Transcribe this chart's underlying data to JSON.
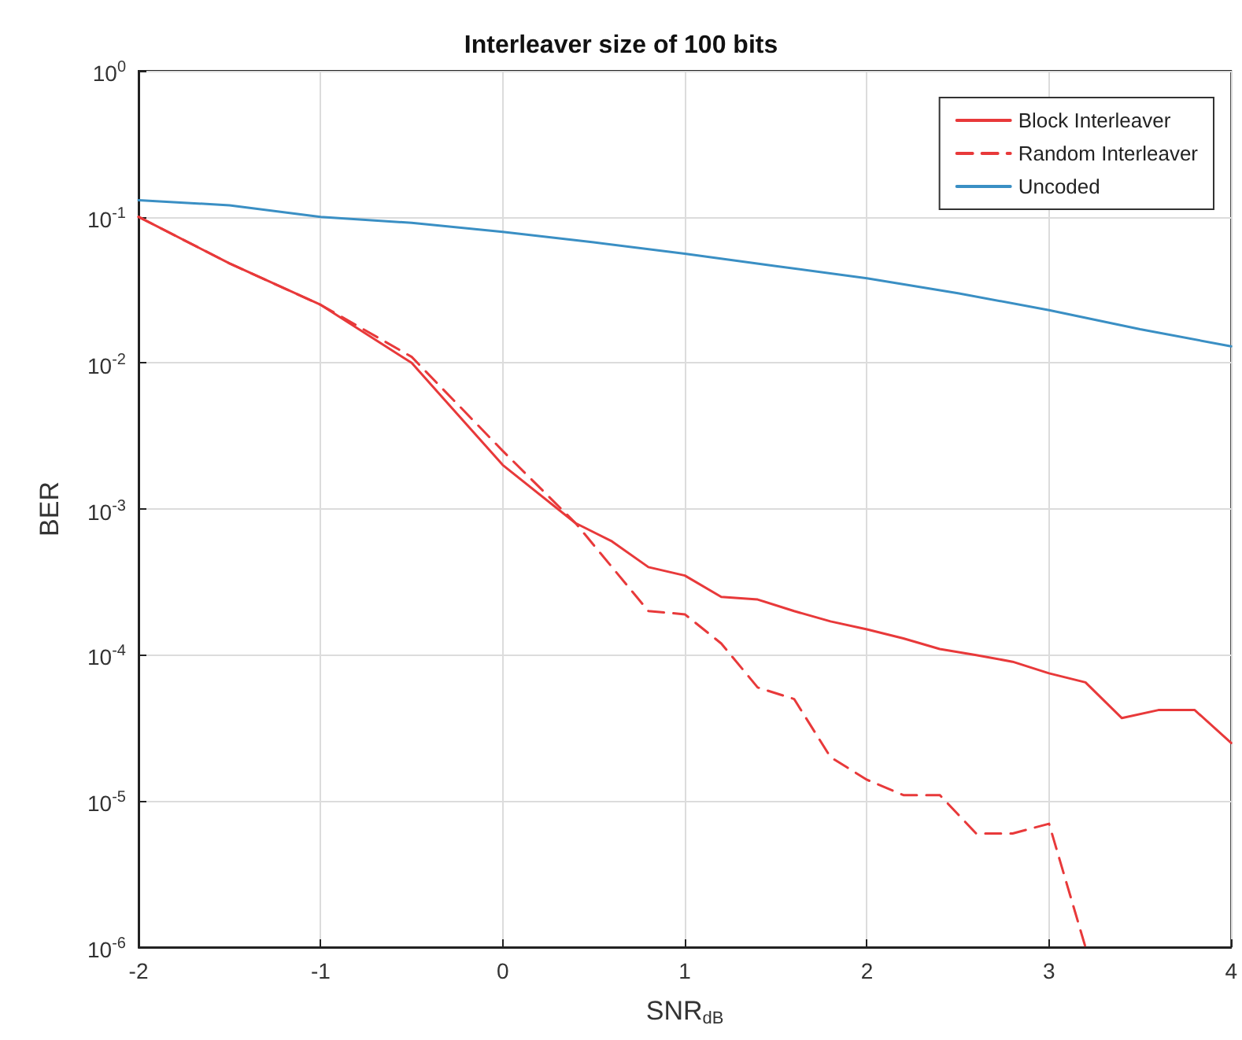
{
  "chart_data": {
    "type": "line",
    "title": "Interleaver size of 100 bits",
    "xlabel": "SNR$_{dB}$",
    "ylabel": "BER",
    "log": "y",
    "grid": true,
    "legend": "top right",
    "marker": "none",
    "xlim": [
      -2,
      4
    ],
    "xticks": [
      -2,
      -1,
      0,
      1,
      2,
      3,
      4
    ],
    "ylim": [
      1e-06,
      1
    ],
    "yticks": [
      {
        "value": 1e-06,
        "label": "10$^{-6}$"
      },
      {
        "value": 1e-05,
        "label": "10$^{-5}$"
      },
      {
        "value": 0.0001,
        "label": "10$^{-4}$"
      },
      {
        "value": 0.001,
        "label": "10$^{-3}$"
      },
      {
        "value": 0.01,
        "label": "10$^{-2}$"
      },
      {
        "value": 0.1,
        "label": "10$^{-1}$"
      },
      {
        "value": 1,
        "label": "10$^{0}$"
      }
    ],
    "x": [
      -2,
      -1.5,
      -1,
      -0.5,
      0,
      0.4,
      0.6,
      0.8,
      1,
      1.2,
      1.4,
      1.6,
      1.8,
      2,
      2.2,
      2.4,
      2.6,
      2.8,
      3,
      3.2,
      3.4,
      3.6,
      3.8,
      4
    ],
    "series": [
      {
        "name": "Block Interleaver",
        "color": "#e8393a",
        "line_style": "solid",
        "values": [
          0.1,
          0.048,
          0.025,
          0.01,
          0.002,
          0.0008,
          0.0006,
          0.0004,
          0.00035,
          0.00025,
          0.00024,
          0.0002,
          0.00017,
          0.00015,
          0.00013,
          0.00011,
          0.0001,
          9e-05,
          7.5e-05,
          6.5e-05,
          3.7e-05,
          4.2e-05,
          4.2e-05,
          2.5e-05
        ]
      },
      {
        "name": "Random Interleaver",
        "color": "#e8393a",
        "line_style": "dashed",
        "values": [
          0.1,
          0.048,
          0.025,
          0.011,
          0.0025,
          0.0008,
          0.0004,
          0.0002,
          0.00019,
          0.00012,
          6e-05,
          5e-05,
          2e-05,
          1.4e-05,
          1.1e-05,
          1.1e-05,
          6e-06,
          6e-06,
          7e-06,
          1e-06,
          null,
          null,
          null,
          null
        ]
      },
      {
        "name": "Uncoded",
        "color": "#3a8fc4",
        "line_style": "solid",
        "x": [
          -2,
          -1.5,
          -1,
          -0.5,
          0,
          0.5,
          1,
          1.5,
          2,
          2.5,
          3,
          3.5,
          4
        ],
        "values": [
          0.13,
          0.12,
          0.1,
          0.091,
          0.079,
          0.067,
          0.056,
          0.046,
          0.038,
          0.03,
          0.023,
          0.017,
          0.013
        ]
      }
    ]
  }
}
